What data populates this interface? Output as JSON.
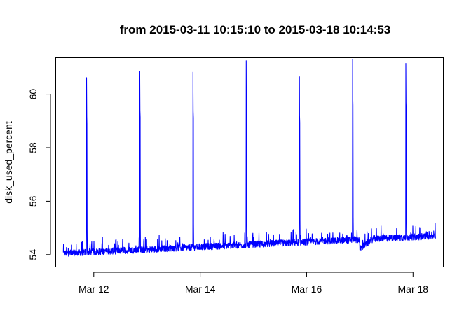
{
  "chart_data": {
    "type": "line",
    "title": "from  2015-03-11 10:15:10  to  2015-03-18 10:14:53",
    "xlabel": "",
    "ylabel": "disk_used_percent",
    "x_range": [
      "2015-03-11 10:15:10",
      "2015-03-18 10:14:53"
    ],
    "xlim": [
      "2015-03-11 07:00",
      "2015-03-18 13:30"
    ],
    "ylim": [
      53.55,
      61.35
    ],
    "x_ticks": [
      {
        "value": "2015-03-12",
        "label": "Mar 12"
      },
      {
        "value": "2015-03-14",
        "label": "Mar 14"
      },
      {
        "value": "2015-03-16",
        "label": "Mar 16"
      },
      {
        "value": "2015-03-18",
        "label": "Mar 18"
      }
    ],
    "y_ticks": [
      54,
      56,
      58,
      60
    ],
    "grid": false,
    "legend": "none",
    "series": [
      {
        "color": "#0000ff",
        "baseline_start": 54.0,
        "baseline_end": 54.65,
        "noise_amplitude": 0.35,
        "spikes": [
          {
            "time": "2015-03-11 20:45",
            "value": 60.62
          },
          {
            "time": "2015-03-12 20:45",
            "value": 60.85
          },
          {
            "time": "2015-03-13 20:45",
            "value": 60.82
          },
          {
            "time": "2015-03-14 20:45",
            "value": 61.25
          },
          {
            "time": "2015-03-15 20:45",
            "value": 60.65
          },
          {
            "time": "2015-03-16 20:45",
            "value": 61.3
          },
          {
            "time": "2015-03-17 20:45",
            "value": 61.15
          }
        ],
        "level_shift": {
          "time": "2015-03-17 00:00",
          "delta": -0.35
        }
      }
    ]
  }
}
